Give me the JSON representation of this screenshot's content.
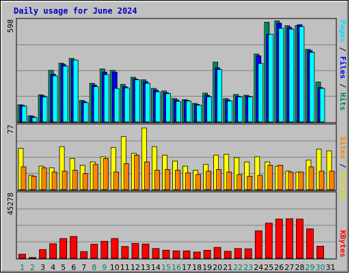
{
  "chart_data": {
    "type": "bar",
    "title": "Daily usage for June 2024",
    "categories": [
      "1",
      "2",
      "3",
      "4",
      "5",
      "6",
      "7",
      "8",
      "9",
      "10",
      "11",
      "12",
      "13",
      "14",
      "15",
      "16",
      "17",
      "18",
      "19",
      "20",
      "21",
      "22",
      "23",
      "24",
      "25",
      "26",
      "27",
      "28",
      "29",
      "30",
      "31"
    ],
    "weekend_days": [
      "1",
      "2",
      "8",
      "9",
      "15",
      "16",
      "22",
      "23",
      "29",
      "30"
    ],
    "panels": [
      {
        "id": "hits-files-pages",
        "ymax": 598,
        "ymax_label": "598",
        "legend": [
          "Pages",
          "Files",
          "Hits"
        ],
        "series": [
          {
            "name": "Hits",
            "color": "#00805c",
            "values": [
              100,
              36,
              158,
              300,
              342,
              370,
              125,
              225,
              308,
              300,
              218,
              260,
              245,
              195,
              180,
              136,
              130,
              108,
              168,
              348,
              136,
              160,
              155,
              395,
              580,
              588,
              560,
              560,
              422,
              232,
              0
            ]
          },
          {
            "name": "Files",
            "color": "#0000ff",
            "values": [
              96,
              32,
              152,
              278,
              335,
              360,
              118,
              215,
              290,
              290,
              205,
              250,
              235,
              185,
              170,
              128,
              126,
              102,
              155,
              315,
              128,
              150,
              150,
              385,
              510,
              575,
              550,
              566,
              415,
              200,
              0
            ]
          },
          {
            "name": "Pages",
            "color": "#00ffff",
            "values": [
              92,
              26,
              145,
              268,
              325,
              360,
              112,
              205,
              275,
              195,
              198,
              245,
              225,
              175,
              165,
              120,
              122,
              98,
              145,
              305,
              122,
              145,
              145,
              340,
              510,
              545,
              540,
              555,
              405,
              195,
              0
            ]
          }
        ]
      },
      {
        "id": "visits-sites",
        "ymax": 77,
        "ymax_label": "77",
        "legend": [
          "Sites",
          "Visits"
        ],
        "series": [
          {
            "name": "Visits",
            "color": "#ffff00",
            "values": [
              49,
              17,
              28,
              26,
              51,
              37,
              29,
              33,
              39,
              50,
              63,
              43,
              73,
              51,
              41,
              34,
              28,
              23,
              30,
              41,
              42,
              38,
              33,
              39,
              33,
              28,
              22,
              21,
              35,
              48,
              46
            ]
          },
          {
            "name": "Sites",
            "color": "#ff8000",
            "values": [
              27,
              16,
              26,
              21,
              22,
              23,
              19,
              30,
              37,
              21,
              31,
              41,
              33,
              23,
              24,
              23,
              20,
              18,
              22,
              24,
              21,
              18,
              16,
              17,
              29,
              29,
              21,
              21,
              27,
              22,
              22
            ]
          }
        ]
      },
      {
        "id": "kbytes",
        "ymax": 45278,
        "ymax_label": "45278",
        "legend": [
          "KBytes"
        ],
        "series": [
          {
            "name": "KBytes",
            "color": "#ff0000",
            "values": [
              2800,
              500,
              6000,
              10000,
              13600,
              15000,
              4600,
              9600,
              11700,
              13600,
              8100,
              10200,
              9800,
              6700,
              5500,
              5100,
              5100,
              4300,
              5500,
              7500,
              4800,
              6700,
              6500,
              18900,
              24200,
              27000,
              27200,
              27000,
              20300,
              8300,
              0
            ]
          }
        ]
      }
    ]
  }
}
